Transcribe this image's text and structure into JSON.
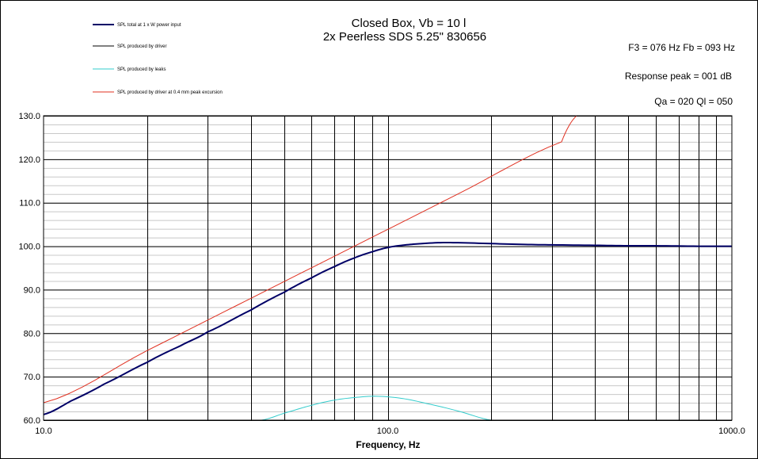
{
  "chart_data": {
    "type": "line",
    "title": "Closed Box, Vb = 10 l",
    "subtitle": "2x Peerless  SDS 5.25\" 830656",
    "xlabel": "Frequency, Hz",
    "ylabel": "",
    "x_scale": "log",
    "xlim": [
      10,
      1000
    ],
    "ylim": [
      60,
      130
    ],
    "x_tick_labels": [
      "10.0",
      "100.0",
      "1000.0"
    ],
    "x_ticks": [
      10,
      100,
      1000
    ],
    "y_ticks": [
      60,
      70,
      80,
      90,
      100,
      110,
      120,
      130
    ],
    "y_tick_labels": [
      "60.0",
      "70.0",
      "80.0",
      "90.0",
      "100.0",
      "110.0",
      "120.0",
      "130.0"
    ],
    "minor_y_step": 2,
    "grid": true,
    "legend_position": "top-left",
    "annotations": [
      "F3 = 076  Hz   Fb = 093  Hz",
      "Response peak = 001  dB",
      "Qa = 020   Ql = 050"
    ],
    "series": [
      {
        "name": "SPL total at 1 x W power input",
        "color": "#000066",
        "width": 2,
        "x": [
          10,
          12,
          15,
          20,
          25,
          30,
          40,
          50,
          60,
          70,
          80,
          90,
          100,
          110,
          120,
          140,
          160,
          200,
          250,
          300,
          400,
          500,
          600,
          800,
          1000
        ],
        "y": [
          61.3,
          64.4,
          68.3,
          73.3,
          77.1,
          80.3,
          85.3,
          89.4,
          92.7,
          95.3,
          97.3,
          98.7,
          99.7,
          100.2,
          100.5,
          100.8,
          100.8,
          100.6,
          100.4,
          100.3,
          100.2,
          100.1,
          100.1,
          100.0,
          100.0
        ]
      },
      {
        "name": "SPL produced by driver",
        "color": "#000000",
        "width": 1,
        "x": [],
        "y": []
      },
      {
        "name": "SPL produced by leaks",
        "color": "#33CCCC",
        "width": 1,
        "x": [
          43,
          50,
          60,
          70,
          80,
          93,
          110,
          130,
          160,
          200
        ],
        "y": [
          60.0,
          61.6,
          63.4,
          64.6,
          65.2,
          65.5,
          65.0,
          63.8,
          62.1,
          60.0
        ]
      },
      {
        "name": "SPL produced by driver at 0.4 mm peak excursion",
        "color": "#E03020",
        "width": 1,
        "x": [
          10,
          20,
          40,
          80,
          160,
          320,
          354
        ],
        "y": [
          64.0,
          76.0,
          88.0,
          100.0,
          112.0,
          124.0,
          130.0
        ]
      }
    ]
  }
}
